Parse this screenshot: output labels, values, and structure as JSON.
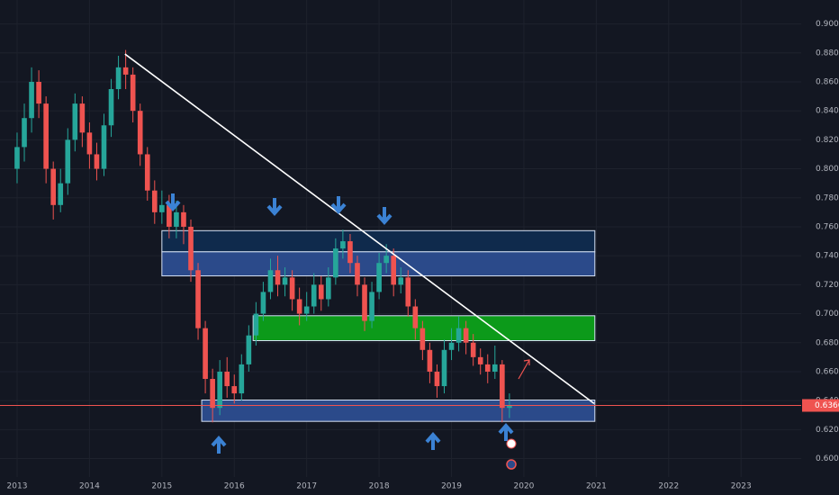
{
  "chart_data": {
    "type": "candlestick",
    "x": [
      2013.0,
      2013.1,
      2013.2,
      2013.3,
      2013.4,
      2013.5,
      2013.6,
      2013.7,
      2013.8,
      2013.9,
      2014.0,
      2014.1,
      2014.2,
      2014.3,
      2014.4,
      2014.5,
      2014.6,
      2014.7,
      2014.8,
      2014.9,
      2015.0,
      2015.1,
      2015.2,
      2015.3,
      2015.4,
      2015.5,
      2015.6,
      2015.7,
      2015.8,
      2015.9,
      2016.0,
      2016.1,
      2016.2,
      2016.3,
      2016.4,
      2016.5,
      2016.6,
      2016.7,
      2016.8,
      2016.9,
      2017.0,
      2017.1,
      2017.2,
      2017.3,
      2017.4,
      2017.5,
      2017.6,
      2017.7,
      2017.8,
      2017.9,
      2018.0,
      2018.1,
      2018.2,
      2018.3,
      2018.4,
      2018.5,
      2018.6,
      2018.7,
      2018.8,
      2018.9,
      2019.0,
      2019.1,
      2019.2,
      2019.3,
      2019.4,
      2019.5,
      2019.6,
      2019.7,
      2019.8
    ],
    "open": [
      0.8,
      0.815,
      0.835,
      0.86,
      0.845,
      0.8,
      0.775,
      0.79,
      0.82,
      0.845,
      0.825,
      0.81,
      0.8,
      0.83,
      0.855,
      0.87,
      0.865,
      0.84,
      0.81,
      0.785,
      0.77,
      0.775,
      0.76,
      0.77,
      0.76,
      0.73,
      0.69,
      0.655,
      0.635,
      0.66,
      0.65,
      0.645,
      0.665,
      0.685,
      0.7,
      0.715,
      0.73,
      0.72,
      0.725,
      0.71,
      0.7,
      0.705,
      0.72,
      0.71,
      0.725,
      0.745,
      0.75,
      0.735,
      0.72,
      0.695,
      0.715,
      0.735,
      0.74,
      0.72,
      0.725,
      0.705,
      0.69,
      0.675,
      0.66,
      0.65,
      0.675,
      0.68,
      0.69,
      0.68,
      0.67,
      0.665,
      0.66,
      0.665,
      0.635
    ],
    "high": [
      0.825,
      0.845,
      0.87,
      0.868,
      0.85,
      0.805,
      0.8,
      0.828,
      0.852,
      0.85,
      0.832,
      0.818,
      0.838,
      0.862,
      0.878,
      0.882,
      0.87,
      0.845,
      0.815,
      0.792,
      0.785,
      0.782,
      0.778,
      0.775,
      0.765,
      0.735,
      0.695,
      0.662,
      0.668,
      0.67,
      0.658,
      0.672,
      0.692,
      0.708,
      0.722,
      0.738,
      0.74,
      0.732,
      0.73,
      0.718,
      0.715,
      0.728,
      0.726,
      0.732,
      0.752,
      0.758,
      0.755,
      0.74,
      0.725,
      0.722,
      0.742,
      0.748,
      0.745,
      0.732,
      0.73,
      0.71,
      0.695,
      0.68,
      0.665,
      0.682,
      0.69,
      0.698,
      0.695,
      0.686,
      0.676,
      0.672,
      0.678,
      0.668,
      0.645
    ],
    "low": [
      0.79,
      0.805,
      0.825,
      0.835,
      0.79,
      0.765,
      0.77,
      0.782,
      0.812,
      0.815,
      0.8,
      0.792,
      0.795,
      0.822,
      0.848,
      0.855,
      0.832,
      0.802,
      0.778,
      0.762,
      0.762,
      0.752,
      0.752,
      0.748,
      0.722,
      0.682,
      0.645,
      0.625,
      0.63,
      0.642,
      0.638,
      0.64,
      0.66,
      0.678,
      0.695,
      0.71,
      0.712,
      0.712,
      0.702,
      0.692,
      0.695,
      0.7,
      0.702,
      0.705,
      0.72,
      0.738,
      0.728,
      0.712,
      0.688,
      0.69,
      0.71,
      0.728,
      0.712,
      0.714,
      0.698,
      0.682,
      0.668,
      0.652,
      0.642,
      0.645,
      0.668,
      0.674,
      0.672,
      0.664,
      0.658,
      0.652,
      0.655,
      0.625,
      0.628
    ],
    "close": [
      0.815,
      0.835,
      0.86,
      0.845,
      0.8,
      0.775,
      0.79,
      0.82,
      0.845,
      0.825,
      0.81,
      0.8,
      0.83,
      0.855,
      0.87,
      0.865,
      0.84,
      0.81,
      0.785,
      0.77,
      0.775,
      0.76,
      0.77,
      0.76,
      0.73,
      0.69,
      0.655,
      0.635,
      0.66,
      0.65,
      0.645,
      0.665,
      0.685,
      0.7,
      0.715,
      0.73,
      0.72,
      0.725,
      0.71,
      0.7,
      0.705,
      0.72,
      0.71,
      0.725,
      0.745,
      0.75,
      0.735,
      0.72,
      0.695,
      0.715,
      0.735,
      0.74,
      0.72,
      0.725,
      0.705,
      0.69,
      0.675,
      0.66,
      0.65,
      0.675,
      0.68,
      0.69,
      0.68,
      0.67,
      0.665,
      0.66,
      0.665,
      0.635,
      0.637
    ],
    "up_color": "#26a69a",
    "down_color": "#ef5350",
    "xlim": [
      2012.764,
      2023.83
    ],
    "xticks": [
      2013,
      2014,
      2015,
      2016,
      2017,
      2018,
      2019,
      2020,
      2021,
      2022,
      2023
    ],
    "ylim": [
      0.5873,
      0.9165
    ],
    "yticks": [
      {
        "value": 0.6,
        "label": "0.60000"
      },
      {
        "value": 0.62,
        "label": "0.62000"
      },
      {
        "value": 0.64,
        "label": "0.64000"
      },
      {
        "value": 0.66,
        "label": "0.66000"
      },
      {
        "value": 0.68,
        "label": "0.68000"
      },
      {
        "value": 0.7,
        "label": "0.70000"
      },
      {
        "value": 0.72,
        "label": "0.72000"
      },
      {
        "value": 0.74,
        "label": "0.74000"
      },
      {
        "value": 0.76,
        "label": "0.76000"
      },
      {
        "value": 0.78,
        "label": "0.78000"
      },
      {
        "value": 0.8,
        "label": "0.80000"
      },
      {
        "value": 0.82,
        "label": "0.82000"
      },
      {
        "value": 0.84,
        "label": "0.84000"
      },
      {
        "value": 0.86,
        "label": "0.86000"
      },
      {
        "value": 0.88,
        "label": "0.88000"
      },
      {
        "value": 0.9,
        "label": "0.90000"
      }
    ],
    "last_price": 0.63668,
    "last_price_color": "#ef5350",
    "zones": [
      {
        "x": [
          2015.0,
          2020.98
        ],
        "y": [
          0.7427,
          0.7573
        ],
        "color": "#0f2a4c"
      },
      {
        "x": [
          2015.0,
          2020.98
        ],
        "y": [
          0.7261,
          0.7427
        ],
        "color": "#2b4a8a"
      },
      {
        "x": [
          2016.26,
          2020.98
        ],
        "y": [
          0.6814,
          0.6986
        ],
        "color": "#0c9a1a"
      },
      {
        "x": [
          2015.55,
          2020.98
        ],
        "y": [
          0.6257,
          0.6404
        ],
        "color": "#2b4a8a"
      }
    ],
    "trendline": {
      "x": [
        2014.49,
        2020.97
      ],
      "y": [
        0.8792,
        0.638
      ]
    }
  }
}
